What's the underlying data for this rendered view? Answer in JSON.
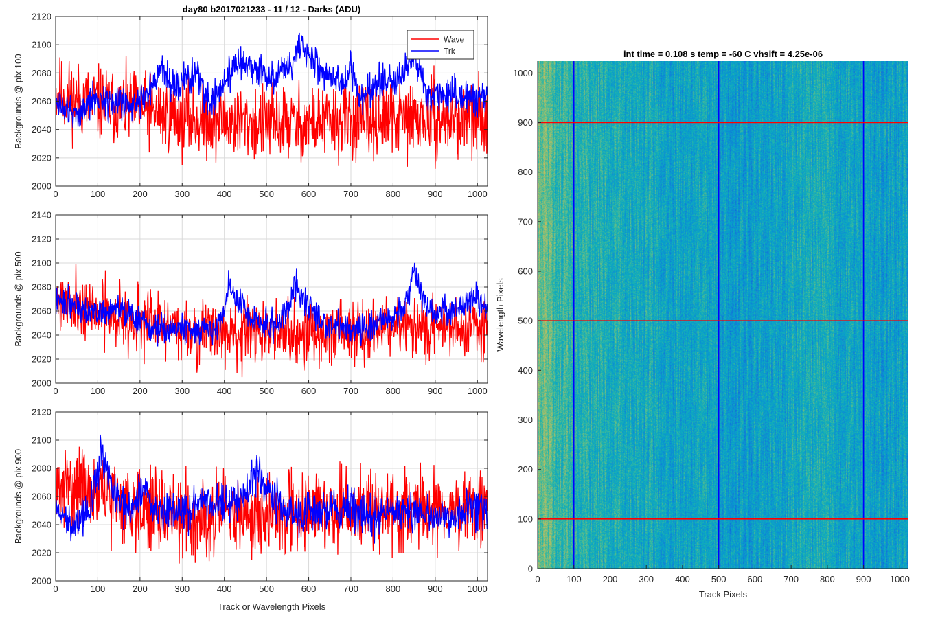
{
  "figure": {
    "background": "#ffffff",
    "grid_color": "#d9d9d9",
    "axis_color": "#262626"
  },
  "chart_data": [
    {
      "type": "line",
      "title": "day80 b2017021233 - 11 / 12 - Darks (ADU)",
      "xlabel": "",
      "ylabel": "Backgrounds @ pix 100",
      "xlim": [
        0,
        1024
      ],
      "ylim": [
        2000,
        2120
      ],
      "xticks": [
        0,
        100,
        200,
        300,
        400,
        500,
        600,
        700,
        800,
        900,
        1000
      ],
      "yticks": [
        2000,
        2020,
        2040,
        2060,
        2080,
        2100,
        2120
      ],
      "grid": true,
      "legend": {
        "position": "top-right",
        "entries": [
          "Wave",
          "Trk"
        ]
      },
      "series": [
        {
          "name": "Wave",
          "color": "#ff0000",
          "noise_amplitude": 13,
          "seed": 11,
          "baseline": [
            [
              0,
              2066
            ],
            [
              60,
              2060
            ],
            [
              150,
              2056
            ],
            [
              250,
              2051
            ],
            [
              350,
              2046
            ],
            [
              500,
              2044
            ],
            [
              650,
              2045
            ],
            [
              800,
              2047
            ],
            [
              1024,
              2048
            ]
          ]
        },
        {
          "name": "Trk",
          "color": "#0000ff",
          "noise_amplitude": 6,
          "seed": 12,
          "baseline": [
            [
              0,
              2060
            ],
            [
              40,
              2050
            ],
            [
              100,
              2062
            ],
            [
              150,
              2058
            ],
            [
              200,
              2060
            ],
            [
              235,
              2072
            ],
            [
              255,
              2085
            ],
            [
              272,
              2070
            ],
            [
              300,
              2070
            ],
            [
              330,
              2082
            ],
            [
              360,
              2060
            ],
            [
              380,
              2064
            ],
            [
              400,
              2072
            ],
            [
              440,
              2090
            ],
            [
              480,
              2082
            ],
            [
              520,
              2076
            ],
            [
              560,
              2085
            ],
            [
              580,
              2103
            ],
            [
              600,
              2092
            ],
            [
              640,
              2080
            ],
            [
              680,
              2073
            ],
            [
              700,
              2084
            ],
            [
              720,
              2062
            ],
            [
              760,
              2074
            ],
            [
              800,
              2074
            ],
            [
              830,
              2082
            ],
            [
              850,
              2092
            ],
            [
              880,
              2064
            ],
            [
              940,
              2066
            ],
            [
              980,
              2060
            ],
            [
              1024,
              2066
            ]
          ]
        }
      ]
    },
    {
      "type": "line",
      "title": "",
      "xlabel": "",
      "ylabel": "Backgrounds @ pix 500",
      "xlim": [
        0,
        1024
      ],
      "ylim": [
        2000,
        2140
      ],
      "xticks": [
        0,
        100,
        200,
        300,
        400,
        500,
        600,
        700,
        800,
        900,
        1000
      ],
      "yticks": [
        2000,
        2020,
        2040,
        2060,
        2080,
        2100,
        2120,
        2140
      ],
      "grid": true,
      "series": [
        {
          "name": "Wave",
          "color": "#ff0000",
          "noise_amplitude": 13,
          "seed": 21,
          "baseline": [
            [
              0,
              2072
            ],
            [
              40,
              2068
            ],
            [
              100,
              2058
            ],
            [
              200,
              2052
            ],
            [
              300,
              2044
            ],
            [
              400,
              2041
            ],
            [
              500,
              2040
            ],
            [
              650,
              2042
            ],
            [
              800,
              2045
            ],
            [
              1024,
              2046
            ]
          ]
        },
        {
          "name": "Trk",
          "color": "#0000ff",
          "noise_amplitude": 6,
          "seed": 22,
          "baseline": [
            [
              0,
              2068
            ],
            [
              50,
              2066
            ],
            [
              100,
              2058
            ],
            [
              150,
              2062
            ],
            [
              180,
              2056
            ],
            [
              220,
              2046
            ],
            [
              280,
              2046
            ],
            [
              330,
              2044
            ],
            [
              380,
              2046
            ],
            [
              400,
              2060
            ],
            [
              410,
              2084
            ],
            [
              430,
              2068
            ],
            [
              470,
              2052
            ],
            [
              520,
              2048
            ],
            [
              550,
              2062
            ],
            [
              570,
              2083
            ],
            [
              590,
              2068
            ],
            [
              620,
              2056
            ],
            [
              660,
              2046
            ],
            [
              740,
              2046
            ],
            [
              780,
              2054
            ],
            [
              820,
              2060
            ],
            [
              850,
              2090
            ],
            [
              870,
              2070
            ],
            [
              900,
              2058
            ],
            [
              960,
              2064
            ],
            [
              1000,
              2072
            ],
            [
              1024,
              2058
            ]
          ]
        }
      ]
    },
    {
      "type": "line",
      "title": "",
      "xlabel": "Track or Wavelength Pixels",
      "ylabel": "Backgrounds @ pix 900",
      "xlim": [
        0,
        1024
      ],
      "ylim": [
        2000,
        2120
      ],
      "xticks": [
        0,
        100,
        200,
        300,
        400,
        500,
        600,
        700,
        800,
        900,
        1000
      ],
      "yticks": [
        2000,
        2020,
        2040,
        2060,
        2080,
        2100,
        2120
      ],
      "grid": true,
      "series": [
        {
          "name": "Wave",
          "color": "#ff0000",
          "noise_amplitude": 14,
          "seed": 31,
          "baseline": [
            [
              0,
              2060
            ],
            [
              40,
              2070
            ],
            [
              100,
              2062
            ],
            [
              200,
              2053
            ],
            [
              300,
              2046
            ],
            [
              400,
              2046
            ],
            [
              500,
              2047
            ],
            [
              650,
              2049
            ],
            [
              800,
              2050
            ],
            [
              1024,
              2051
            ]
          ]
        },
        {
          "name": "Trk",
          "color": "#0000ff",
          "noise_amplitude": 7,
          "seed": 32,
          "baseline": [
            [
              0,
              2050
            ],
            [
              40,
              2040
            ],
            [
              80,
              2050
            ],
            [
              110,
              2090
            ],
            [
              140,
              2060
            ],
            [
              180,
              2050
            ],
            [
              210,
              2068
            ],
            [
              240,
              2050
            ],
            [
              300,
              2048
            ],
            [
              350,
              2058
            ],
            [
              400,
              2052
            ],
            [
              450,
              2060
            ],
            [
              470,
              2076
            ],
            [
              490,
              2072
            ],
            [
              520,
              2054
            ],
            [
              580,
              2046
            ],
            [
              620,
              2050
            ],
            [
              700,
              2050
            ],
            [
              760,
              2044
            ],
            [
              800,
              2050
            ],
            [
              860,
              2048
            ],
            [
              940,
              2046
            ],
            [
              1000,
              2052
            ],
            [
              1024,
              2046
            ]
          ]
        }
      ]
    },
    {
      "type": "heatmap",
      "title": "int time = 0.108 s   temp = -60 C   vhsift = 4.25e-06",
      "xlabel": "Track Pixels",
      "ylabel": "Wavelength Pixels",
      "xlim": [
        0,
        1024
      ],
      "ylim": [
        0,
        1024
      ],
      "xticks": [
        0,
        100,
        200,
        300,
        400,
        500,
        600,
        700,
        800,
        900,
        1000
      ],
      "yticks": [
        0,
        100,
        200,
        300,
        400,
        500,
        600,
        700,
        800,
        900,
        1000
      ],
      "colormap": "parula",
      "value_range": [
        0,
        1
      ],
      "column_profile": [
        [
          0,
          0.62
        ],
        [
          30,
          0.55
        ],
        [
          80,
          0.47
        ],
        [
          150,
          0.44
        ],
        [
          240,
          0.42
        ],
        [
          300,
          0.4
        ],
        [
          400,
          0.36
        ],
        [
          470,
          0.37
        ],
        [
          540,
          0.34
        ],
        [
          640,
          0.37
        ],
        [
          760,
          0.42
        ],
        [
          820,
          0.38
        ],
        [
          900,
          0.37
        ],
        [
          960,
          0.35
        ],
        [
          1024,
          0.36
        ]
      ],
      "noise_amplitude": 0.1,
      "seed": 5,
      "markers": [
        {
          "orientation": "vertical",
          "value": 100,
          "color": "#0000ff"
        },
        {
          "orientation": "vertical",
          "value": 500,
          "color": "#0000ff"
        },
        {
          "orientation": "vertical",
          "value": 900,
          "color": "#0000ff"
        },
        {
          "orientation": "horizontal",
          "value": 100,
          "color": "#ff0000"
        },
        {
          "orientation": "horizontal",
          "value": 500,
          "color": "#ff0000"
        },
        {
          "orientation": "horizontal",
          "value": 900,
          "color": "#ff0000"
        }
      ]
    }
  ]
}
